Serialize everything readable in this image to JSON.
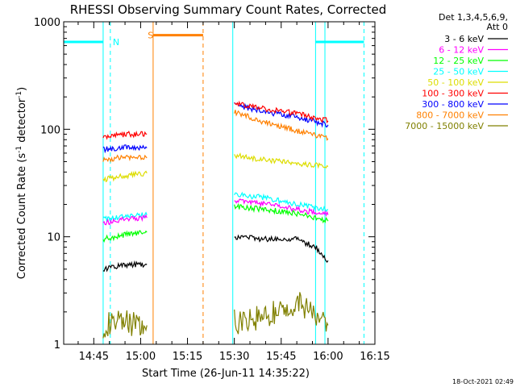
{
  "chart_data": {
    "type": "line",
    "title": "RHESSI Observing Summary Count Rates, Corrected",
    "xlabel": "Start Time (26-Jun-11 14:35:22)",
    "ylabel_base": "Corrected Count Rate (s",
    "ylabel_sup1": "-1",
    "ylabel_mid": " detector",
    "ylabel_sup2": "-1",
    "ylabel_end": ")",
    "y_scale": "log",
    "ylim": [
      1,
      1000
    ],
    "xlim_minutes": [
      35.37,
      135
    ],
    "y_ticks": [
      {
        "value": 1,
        "label": "1"
      },
      {
        "value": 10,
        "label": "10"
      },
      {
        "value": 100,
        "label": "100"
      },
      {
        "value": 1000,
        "label": "1000"
      }
    ],
    "x_ticks": [
      {
        "minute": 45,
        "label": "14:45"
      },
      {
        "minute": 60,
        "label": "15:00"
      },
      {
        "minute": 75,
        "label": "15:15"
      },
      {
        "minute": 90,
        "label": "15:30"
      },
      {
        "minute": 105,
        "label": "15:45"
      },
      {
        "minute": 120,
        "label": "16:00"
      },
      {
        "minute": 135,
        "label": "16:15"
      }
    ],
    "legend_header": [
      "Det 1,3,4,5,6,9,",
      "Att 0"
    ],
    "legend_position": "right",
    "series": [
      {
        "name": "3 - 6 keV",
        "color": "#000000",
        "segments": [
          [
            [
              48.0,
              5.0
            ],
            [
              55.0,
              5.5
            ],
            [
              62.0,
              5.5
            ]
          ],
          [
            [
              90.0,
              10.0
            ],
            [
              100.0,
              9.5
            ],
            [
              110.0,
              9.5
            ],
            [
              116.0,
              8.0
            ],
            [
              120.0,
              6.0
            ]
          ]
        ]
      },
      {
        "name": "6 - 12 keV",
        "color": "#ff00ff",
        "segments": [
          [
            [
              48.0,
              13.5
            ],
            [
              55.0,
              14.5
            ],
            [
              62.0,
              15.0
            ]
          ],
          [
            [
              90.0,
              22.0
            ],
            [
              100.0,
              20.0
            ],
            [
              110.0,
              18.0
            ],
            [
              120.0,
              16.0
            ]
          ]
        ]
      },
      {
        "name": "12 - 25 keV",
        "color": "#00ff00",
        "segments": [
          [
            [
              48.0,
              9.5
            ],
            [
              55.0,
              10.5
            ],
            [
              62.0,
              11.0
            ]
          ],
          [
            [
              90.0,
              19.0
            ],
            [
              100.0,
              18.0
            ],
            [
              110.0,
              16.5
            ],
            [
              120.0,
              14.0
            ]
          ]
        ]
      },
      {
        "name": "25 - 50 keV",
        "color": "#00ffff",
        "segments": [
          [
            [
              48.0,
              14.5
            ],
            [
              55.0,
              15.5
            ],
            [
              62.0,
              16.0
            ]
          ],
          [
            [
              90.0,
              25.0
            ],
            [
              100.0,
              23.0
            ],
            [
              110.0,
              20.0
            ],
            [
              120.0,
              18.0
            ]
          ]
        ]
      },
      {
        "name": "50 - 100 keV",
        "color": "#dddd00",
        "segments": [
          [
            [
              48.0,
              34.0
            ],
            [
              55.0,
              37.0
            ],
            [
              62.0,
              39.0
            ]
          ],
          [
            [
              90.0,
              57.0
            ],
            [
              100.0,
              52.0
            ],
            [
              110.0,
              48.0
            ],
            [
              120.0,
              45.0
            ]
          ]
        ]
      },
      {
        "name": "100 - 300 keV",
        "color": "#ff0000",
        "segments": [
          [
            [
              48.0,
              83.0
            ],
            [
              55.0,
              90.0
            ],
            [
              62.0,
              90.0
            ]
          ],
          [
            [
              90.0,
              175.0
            ],
            [
              100.0,
              155.0
            ],
            [
              110.0,
              140.0
            ],
            [
              120.0,
              120.0
            ]
          ]
        ]
      },
      {
        "name": "300 - 800 keV",
        "color": "#0000ff",
        "segments": [
          [
            [
              48.0,
              65.0
            ],
            [
              55.0,
              68.0
            ],
            [
              62.0,
              67.0
            ]
          ],
          [
            [
              90.0,
              170.0
            ],
            [
              100.0,
              145.0
            ],
            [
              110.0,
              130.0
            ],
            [
              120.0,
              110.0
            ]
          ]
        ]
      },
      {
        "name": "800 - 7000 keV",
        "color": "#ff8000",
        "segments": [
          [
            [
              48.0,
              52.0
            ],
            [
              55.0,
              55.0
            ],
            [
              62.0,
              54.0
            ]
          ],
          [
            [
              90.0,
              145.0
            ],
            [
              100.0,
              115.0
            ],
            [
              110.0,
              97.0
            ],
            [
              120.0,
              82.0
            ]
          ]
        ]
      },
      {
        "name": "7000 - 15000 keV",
        "color": "#808000",
        "segments": [
          [
            [
              48.0,
              1.5
            ],
            [
              55.0,
              1.6
            ],
            [
              62.0,
              1.5
            ]
          ],
          [
            [
              90.0,
              1.6
            ],
            [
              100.0,
              1.8
            ],
            [
              110.0,
              2.5
            ],
            [
              120.0,
              1.5
            ]
          ]
        ]
      }
    ],
    "bars": [
      {
        "label": "N",
        "color": "#00ffff",
        "y": 650,
        "spans": [
          [
            35.37,
            48.0
          ],
          [
            116.0,
            131.5
          ]
        ],
        "label_minute": 50.3
      },
      {
        "label": "S",
        "color": "#ff8000",
        "y": 750,
        "spans": [
          [
            64.0,
            80.0
          ]
        ],
        "label_minute": 61.5
      }
    ],
    "vlines": [
      {
        "minute": 35.37,
        "color": "#00ffff",
        "style": "solid"
      },
      {
        "minute": 48.0,
        "color": "#00ffff",
        "style": "solid"
      },
      {
        "minute": 50.3,
        "color": "#00ffff",
        "style": "dashed"
      },
      {
        "minute": 64.0,
        "color": "#ff8000",
        "style": "solid"
      },
      {
        "minute": 80.0,
        "color": "#ff8000",
        "style": "dashed"
      },
      {
        "minute": 89.5,
        "color": "#00ffff",
        "style": "solid"
      },
      {
        "minute": 116.0,
        "color": "#00ffff",
        "style": "solid"
      },
      {
        "minute": 119.0,
        "color": "#00ffff",
        "style": "solid"
      },
      {
        "minute": 131.5,
        "color": "#00ffff",
        "style": "dashed"
      }
    ],
    "timestamp": "18-Oct-2021 02:49"
  }
}
